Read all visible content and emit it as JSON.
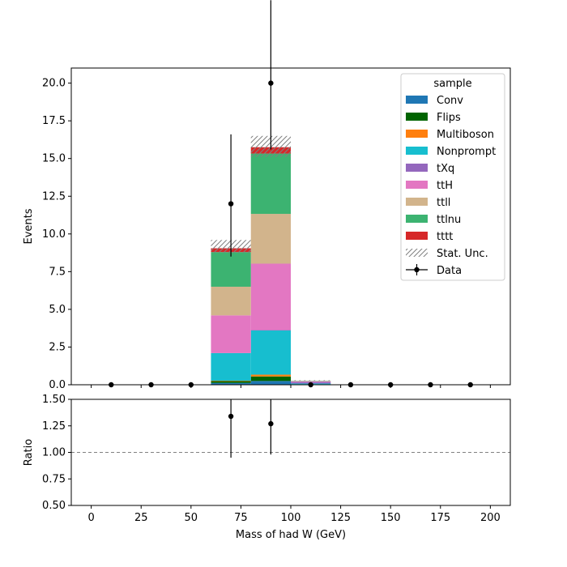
{
  "chart_data": [
    {
      "type": "bar",
      "subtype": "stacked-histogram",
      "xlabel": "Mass of had W (GeV)",
      "ylabel": "Events",
      "xlim": [
        -10,
        210
      ],
      "ylim": [
        0,
        21
      ],
      "yticks": [
        "0.0",
        "2.5",
        "5.0",
        "7.5",
        "10.0",
        "12.5",
        "15.0",
        "17.5",
        "20.0"
      ],
      "bin_edges": [
        0,
        20,
        40,
        60,
        80,
        100,
        120,
        140,
        160,
        180,
        200
      ],
      "series": [
        {
          "name": "Conv",
          "color": "#1f77b4",
          "values": [
            0,
            0,
            0,
            0.12,
            0.25,
            0.03,
            0,
            0,
            0,
            0
          ]
        },
        {
          "name": "Flips",
          "color": "#006400",
          "values": [
            0,
            0,
            0,
            0.12,
            0.3,
            0,
            0,
            0,
            0,
            0
          ]
        },
        {
          "name": "Multiboson",
          "color": "#ff7f0e",
          "values": [
            0,
            0,
            0,
            0.03,
            0.12,
            0,
            0,
            0,
            0,
            0
          ]
        },
        {
          "name": "Nonprompt",
          "color": "#17becf",
          "values": [
            0,
            0,
            0,
            1.83,
            2.93,
            0.05,
            0,
            0,
            0,
            0
          ]
        },
        {
          "name": "tXq",
          "color": "#9467bd",
          "values": [
            0,
            0,
            0,
            0,
            0.03,
            0.1,
            0,
            0,
            0,
            0
          ]
        },
        {
          "name": "ttH",
          "color": "#e377c2",
          "values": [
            0,
            0,
            0,
            2.5,
            4.4,
            0.05,
            0,
            0,
            0,
            0
          ]
        },
        {
          "name": "ttll",
          "color": "#d2b48c",
          "values": [
            0,
            0,
            0,
            1.9,
            3.3,
            0.02,
            0,
            0,
            0,
            0
          ]
        },
        {
          "name": "ttlnu",
          "color": "#3cb371",
          "values": [
            0,
            0,
            0,
            2.3,
            4.0,
            0.02,
            0,
            0,
            0,
            0
          ]
        },
        {
          "name": "tttt",
          "color": "#d62728",
          "values": [
            0,
            0,
            0,
            0.25,
            0.42,
            0,
            0,
            0,
            0,
            0
          ]
        }
      ],
      "stat_unc": {
        "name": "Stat. Unc.",
        "low": [
          0,
          0,
          0,
          8.75,
          15.1,
          0.25,
          0,
          0,
          0,
          0
        ],
        "high": [
          0,
          0,
          0,
          9.6,
          16.5,
          0.3,
          0,
          0,
          0,
          0
        ]
      },
      "data": {
        "name": "Data",
        "x": [
          10,
          30,
          50,
          70,
          90,
          110,
          130,
          150,
          170,
          190
        ],
        "y": [
          0,
          0,
          0,
          12,
          20,
          0,
          0,
          0,
          0,
          0
        ],
        "err_low": [
          0,
          0,
          0,
          3.5,
          4.4,
          0,
          0,
          0,
          0,
          0
        ],
        "err_high": [
          0,
          0,
          0,
          4.6,
          5.5,
          0,
          0,
          0,
          0,
          0
        ]
      },
      "legend": {
        "title": "sample",
        "placement": "top-right"
      }
    },
    {
      "type": "scatter",
      "xlabel": "Mass of had W (GeV)",
      "ylabel": "Ratio",
      "xlim": [
        -10,
        210
      ],
      "ylim": [
        0.5,
        1.5
      ],
      "xticks": [
        "0",
        "25",
        "50",
        "75",
        "100",
        "125",
        "150",
        "175",
        "200"
      ],
      "yticks": [
        "0.50",
        "0.75",
        "1.00",
        "1.25",
        "1.50"
      ],
      "reference_line": 1.0,
      "points": {
        "x": [
          70,
          90
        ],
        "y": [
          1.34,
          1.27
        ],
        "err_low": [
          0.39,
          0.29
        ],
        "err_high": [
          0.5,
          0.35
        ]
      }
    }
  ]
}
